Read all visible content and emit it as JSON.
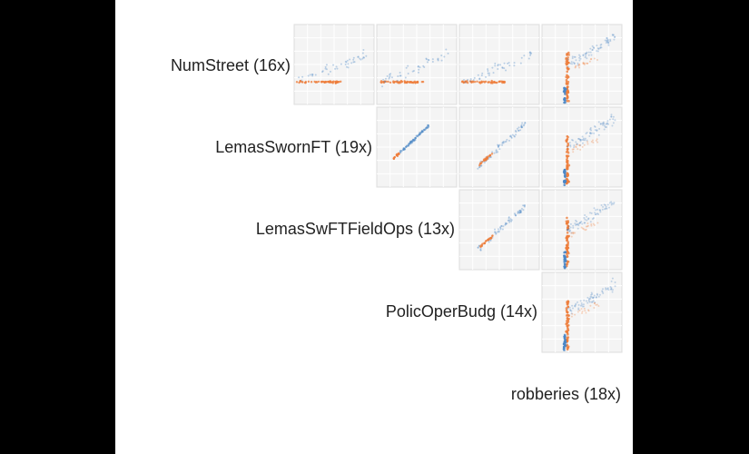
{
  "chart_data": {
    "type": "scatter",
    "variables": [
      {
        "name": "NumStreet",
        "zoom": "(16x)"
      },
      {
        "name": "LemasSwornFT",
        "zoom": "(19x)"
      },
      {
        "name": "LemasSwFTFieldOps",
        "zoom": "(13x)"
      },
      {
        "name": "PolicOperBudg",
        "zoom": "(14x)"
      },
      {
        "name": "robberies",
        "zoom": "(18x)"
      }
    ],
    "colors": {
      "blue": "#4a86c5",
      "orange": "#ee7d3b",
      "grid": "#e9e9e9",
      "cell_bg": "#f4f4f4"
    },
    "pairs": [
      {
        "row": 0,
        "col": 1,
        "pattern": "horizontal"
      },
      {
        "row": 0,
        "col": 2,
        "pattern": "horizontal"
      },
      {
        "row": 0,
        "col": 3,
        "pattern": "horizontal"
      },
      {
        "row": 0,
        "col": 4,
        "pattern": "vertical"
      },
      {
        "row": 1,
        "col": 2,
        "pattern": "diagonal-tight"
      },
      {
        "row": 1,
        "col": 3,
        "pattern": "diagonal-spread"
      },
      {
        "row": 1,
        "col": 4,
        "pattern": "vertical"
      },
      {
        "row": 2,
        "col": 3,
        "pattern": "diagonal-spread"
      },
      {
        "row": 2,
        "col": 4,
        "pattern": "vertical"
      },
      {
        "row": 3,
        "col": 4,
        "pattern": "vertical"
      }
    ]
  }
}
